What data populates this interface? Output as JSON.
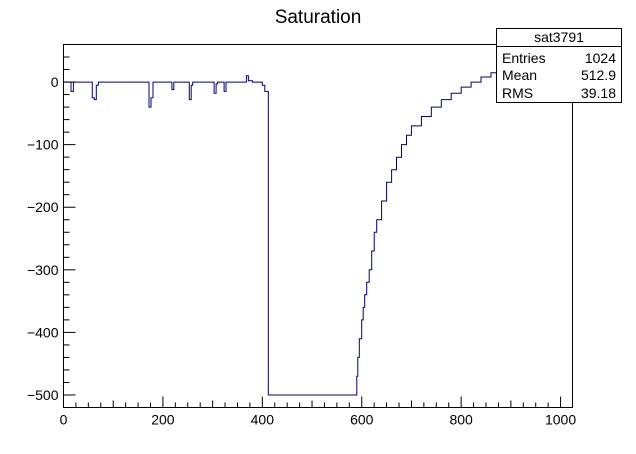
{
  "chart_data": {
    "type": "line",
    "title": "Saturation",
    "xlabel": "",
    "ylabel": "",
    "xlim": [
      0,
      1024
    ],
    "ylim": [
      -520,
      60
    ],
    "x_ticks": [
      0,
      200,
      400,
      600,
      800,
      1000
    ],
    "y_ticks": [
      0,
      -100,
      -200,
      -300,
      -400,
      -500
    ],
    "x_tick_labels": [
      "0",
      "200",
      "400",
      "600",
      "800",
      "1000"
    ],
    "y_tick_labels": [
      "0",
      "−100",
      "−200",
      "−300",
      "−400",
      "−500"
    ],
    "grid": false,
    "line_color": "#000080",
    "series": [
      {
        "x": [
          0,
          10,
          15,
          20,
          40,
          55,
          58,
          62,
          66,
          70,
          100,
          140,
          168,
          172,
          176,
          180,
          200,
          215,
          218,
          222,
          250,
          253,
          257,
          260,
          300,
          303,
          307,
          310,
          320,
          323,
          327,
          330,
          360,
          368,
          372,
          380,
          395,
          400,
          405,
          410,
          412,
          413,
          500,
          588,
          590,
          592,
          595,
          600,
          603,
          606,
          610,
          615,
          620,
          625,
          630,
          640,
          650,
          660,
          670,
          680,
          690,
          700,
          720,
          740,
          760,
          780,
          800,
          820,
          840,
          860,
          880
        ],
        "y": [
          0,
          0,
          -15,
          0,
          0,
          0,
          -25,
          -28,
          -5,
          0,
          0,
          0,
          0,
          -40,
          -25,
          0,
          0,
          0,
          -12,
          0,
          0,
          -28,
          -5,
          0,
          0,
          -18,
          -3,
          0,
          0,
          -15,
          0,
          0,
          0,
          10,
          2,
          0,
          0,
          -5,
          -15,
          -15,
          -500,
          -500,
          -500,
          -500,
          -470,
          -440,
          -410,
          -380,
          -360,
          -340,
          -320,
          -300,
          -270,
          -240,
          -220,
          -190,
          -160,
          -140,
          -120,
          -100,
          -85,
          -70,
          -55,
          -40,
          -28,
          -18,
          -8,
          0,
          8,
          15,
          22
        ]
      }
    ]
  },
  "stats_box": {
    "name": "sat3791",
    "rows": [
      {
        "label": "Entries",
        "value": "1024"
      },
      {
        "label": "Mean",
        "value": "512.9"
      },
      {
        "label": "RMS",
        "value": "39.18"
      }
    ]
  }
}
